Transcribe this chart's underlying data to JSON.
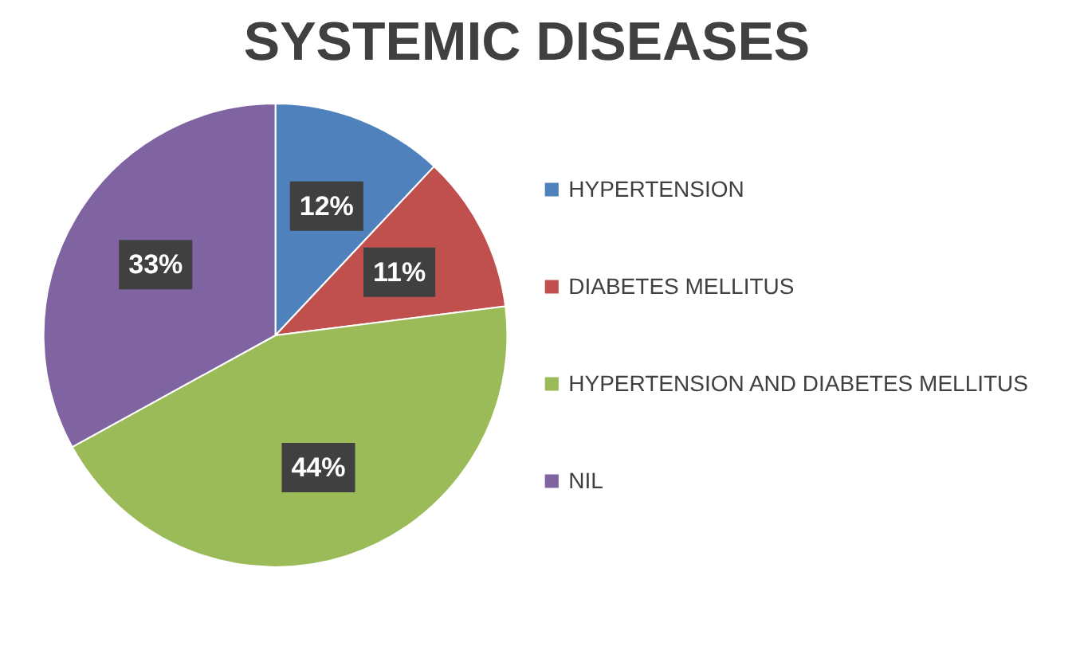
{
  "chart_data": {
    "type": "pie",
    "title": "SYSTEMIC DISEASES",
    "categories": [
      "HYPERTENSION",
      "DIABETES MELLITUS",
      "HYPERTENSION AND DIABETES MELLITUS",
      "NIL"
    ],
    "values": [
      12,
      11,
      44,
      33
    ],
    "colors": [
      "#4f81bd",
      "#c0504d",
      "#9bbb59",
      "#8064a2"
    ],
    "value_labels": [
      "12%",
      "11%",
      "44%",
      "33%"
    ],
    "legend": "right"
  }
}
